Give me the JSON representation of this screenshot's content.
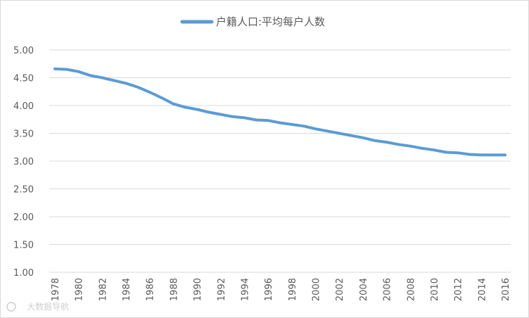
{
  "chart_data": {
    "type": "line",
    "legend": "户籍人口:平均每户人数",
    "legend_position": "top-center",
    "grid": true,
    "ylim": [
      1.0,
      5.0
    ],
    "y_ticks": [
      "5.00",
      "4.50",
      "4.00",
      "3.50",
      "3.00",
      "2.50",
      "2.00",
      "1.50",
      "1.00"
    ],
    "x_ticks": [
      "1978",
      "1980",
      "1982",
      "1984",
      "1986",
      "1988",
      "1990",
      "1992",
      "1994",
      "1996",
      "1998",
      "2000",
      "2002",
      "2004",
      "2006",
      "2008",
      "2010",
      "2012",
      "2014",
      "2016"
    ],
    "x": [
      1978,
      1979,
      1980,
      1981,
      1982,
      1983,
      1984,
      1985,
      1986,
      1987,
      1988,
      1989,
      1990,
      1991,
      1992,
      1993,
      1994,
      1995,
      1996,
      1997,
      1998,
      1999,
      2000,
      2001,
      2002,
      2003,
      2004,
      2005,
      2006,
      2007,
      2008,
      2009,
      2010,
      2011,
      2012,
      2013,
      2014,
      2015,
      2016
    ],
    "series": [
      {
        "name": "户籍人口:平均每户人数",
        "color": "#5b9bd5",
        "values": [
          4.66,
          4.65,
          4.61,
          4.54,
          4.5,
          4.45,
          4.4,
          4.33,
          4.24,
          4.14,
          4.03,
          3.97,
          3.93,
          3.88,
          3.84,
          3.8,
          3.78,
          3.74,
          3.73,
          3.69,
          3.66,
          3.63,
          3.58,
          3.54,
          3.5,
          3.46,
          3.42,
          3.37,
          3.34,
          3.3,
          3.27,
          3.23,
          3.2,
          3.16,
          3.15,
          3.12,
          3.11,
          3.11,
          3.11
        ]
      }
    ]
  },
  "colors": {
    "line": "#5b9bd5",
    "grid": "#d9d9d9",
    "text": "#595959"
  },
  "watermark": "大数据导航"
}
